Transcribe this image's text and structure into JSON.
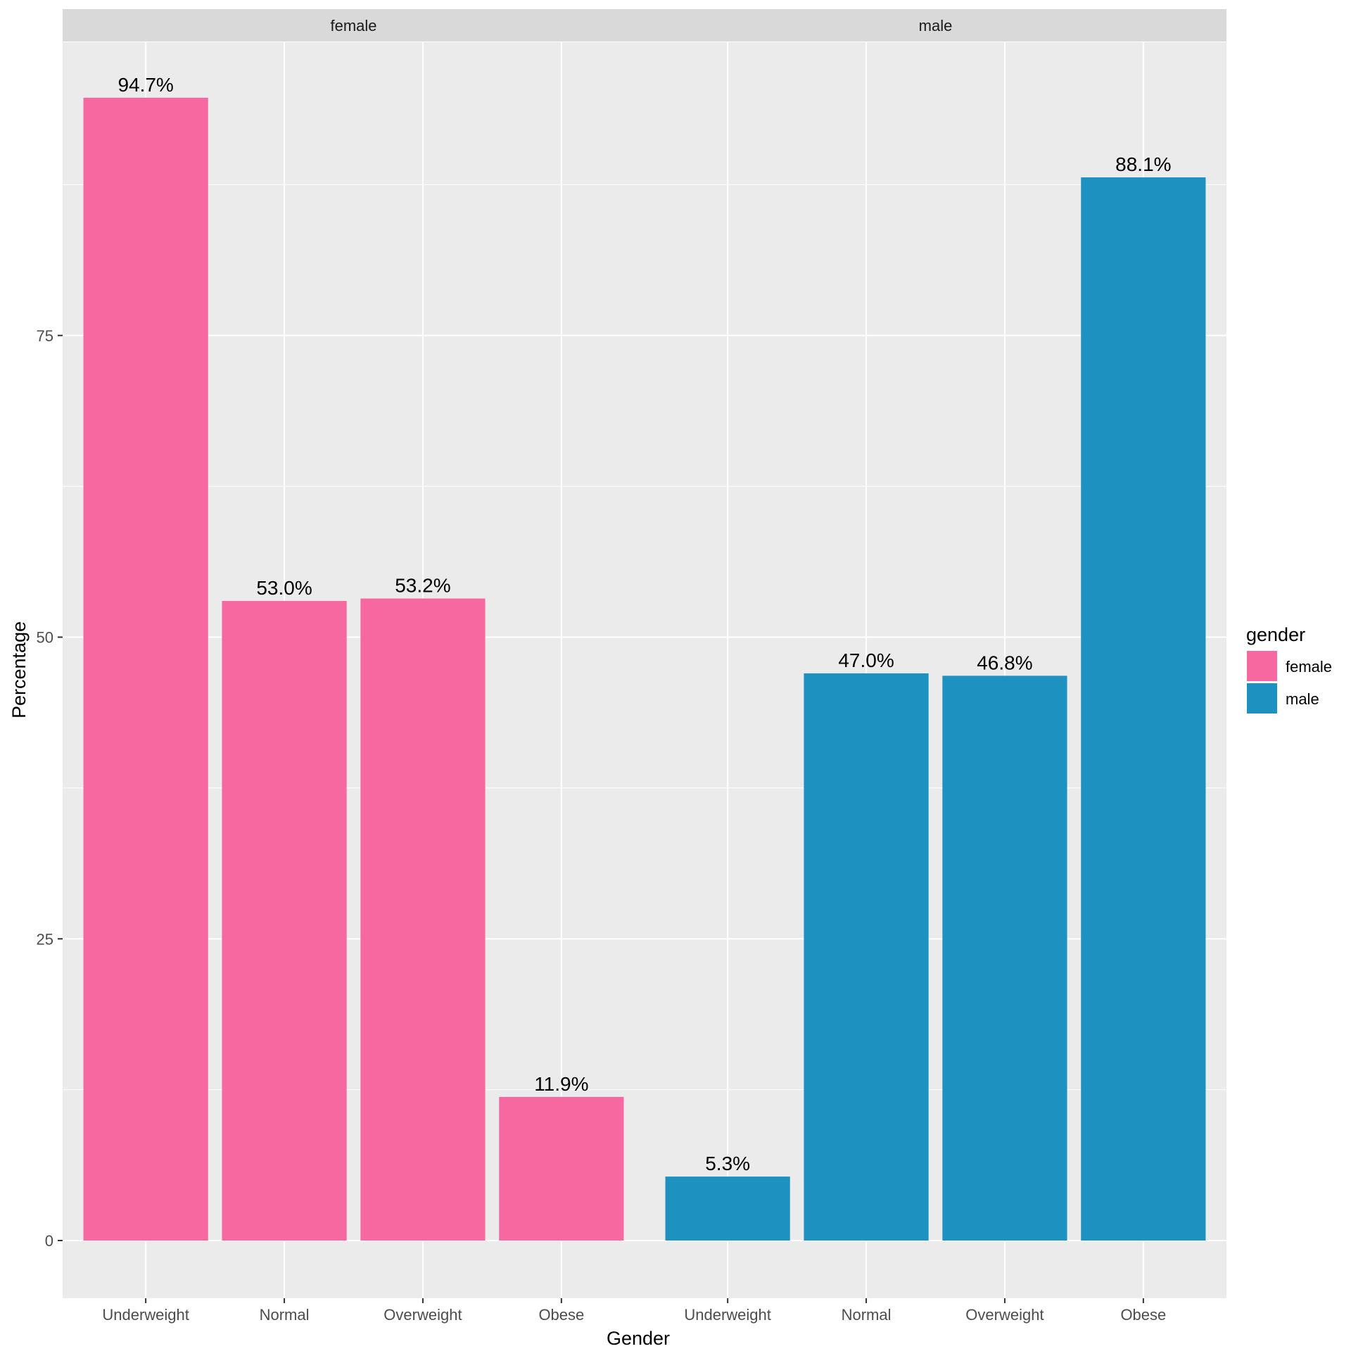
{
  "chart_data": {
    "type": "bar",
    "categories": [
      "Underweight",
      "Normal",
      "Overweight",
      "Obese"
    ],
    "facets": [
      {
        "name": "female",
        "color": "#F768A1",
        "values": [
          94.7,
          53.0,
          53.2,
          11.9
        ],
        "labels": [
          "94.7%",
          "53.0%",
          "53.2%",
          "11.9%"
        ]
      },
      {
        "name": "male",
        "color": "#1D91C0",
        "values": [
          5.3,
          47.0,
          46.8,
          88.1
        ],
        "labels": [
          "5.3%",
          "47.0%",
          "46.8%",
          "88.1%"
        ]
      }
    ],
    "xlabel": "Gender",
    "ylabel": "Percentage",
    "ylim": [
      -4.7,
      100.0
    ],
    "yticks": [
      0,
      25,
      50,
      75
    ],
    "grid": true,
    "legend": {
      "title": "gender",
      "placement": "right",
      "items": [
        {
          "label": "female",
          "color": "#F768A1"
        },
        {
          "label": "male",
          "color": "#1D91C0"
        }
      ]
    },
    "panel_background": "#EBEBEB",
    "strip_background": "#D9D9D9"
  }
}
